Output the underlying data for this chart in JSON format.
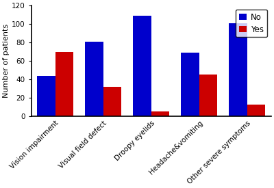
{
  "categories": [
    "Vision impairment",
    "Visual field defect",
    "Droopy eyelids",
    "Headache&vomiting",
    "Other severe symptoms"
  ],
  "no_values": [
    44,
    81,
    109,
    69,
    101
  ],
  "yes_values": [
    70,
    32,
    5,
    45,
    13
  ],
  "no_color": "#0000cc",
  "yes_color": "#cc0000",
  "ylabel": "Number of patients",
  "ylim": [
    0,
    120
  ],
  "yticks": [
    0,
    20,
    40,
    60,
    80,
    100,
    120
  ],
  "legend_no": "No",
  "legend_yes": "Yes",
  "bar_width": 0.38,
  "background_color": "#ffffff"
}
